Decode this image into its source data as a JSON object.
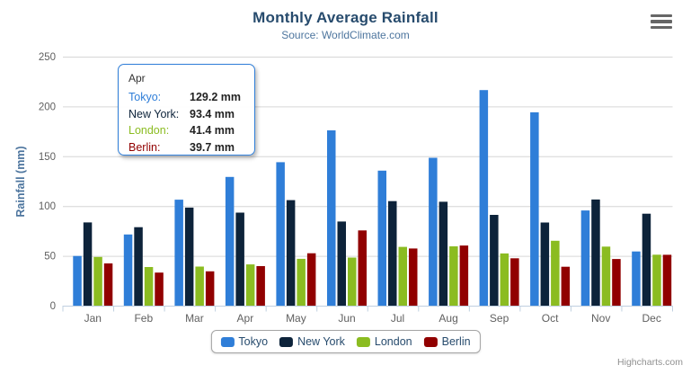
{
  "chart": {
    "title": "Monthly Average Rainfall",
    "subtitle": "Source: WorldClimate.com",
    "credits_label": "Highcharts.com"
  },
  "chart_data": {
    "type": "bar",
    "subtype": "grouped-vertical-columns",
    "title": "Monthly Average Rainfall",
    "subtitle": "Source: WorldClimate.com",
    "categories": [
      "Jan",
      "Feb",
      "Mar",
      "Apr",
      "May",
      "Jun",
      "Jul",
      "Aug",
      "Sep",
      "Oct",
      "Nov",
      "Dec"
    ],
    "series": [
      {
        "name": "Tokyo",
        "color": "#2f7ed8",
        "values": [
          49.9,
          71.5,
          106.4,
          129.2,
          144.0,
          176.0,
          135.6,
          148.5,
          216.4,
          194.1,
          95.6,
          54.4
        ]
      },
      {
        "name": "New York",
        "color": "#0d233a",
        "values": [
          83.6,
          78.8,
          98.5,
          93.4,
          106.0,
          84.5,
          105.0,
          104.3,
          91.2,
          83.5,
          106.6,
          92.3
        ]
      },
      {
        "name": "London",
        "color": "#8bbc21",
        "values": [
          48.9,
          38.8,
          39.3,
          41.4,
          47.0,
          48.3,
          59.0,
          59.6,
          52.4,
          65.2,
          59.3,
          51.2
        ]
      },
      {
        "name": "Berlin",
        "color": "#910000",
        "values": [
          42.4,
          33.2,
          34.5,
          39.7,
          52.6,
          75.5,
          57.4,
          60.4,
          47.6,
          39.1,
          46.8,
          51.1
        ]
      }
    ],
    "xlabel": "",
    "ylabel": "Rainfall (mm)",
    "ylim": [
      0,
      250
    ],
    "yticks": [
      0,
      50,
      100,
      150,
      200,
      250
    ],
    "grid": true,
    "legend_position": "bottom"
  },
  "tooltip": {
    "header": "Apr",
    "rows": [
      {
        "label": "Tokyo:",
        "value": "129.2 mm",
        "color": "#2f7ed8"
      },
      {
        "label": "New York:",
        "value": "93.4 mm",
        "color": "#0d233a"
      },
      {
        "label": "London:",
        "value": "41.4 mm",
        "color": "#8bbc21"
      },
      {
        "label": "Berlin:",
        "value": "39.7 mm",
        "color": "#910000"
      }
    ]
  },
  "colors": {
    "title": "#274b6d",
    "subtitle": "#4d759e",
    "axis_labels": "#606060",
    "axis_line": "#c0d0e0",
    "gridline": "#d6d6d6",
    "tooltip_border": "#2f7ed8",
    "credits": "#909090"
  }
}
